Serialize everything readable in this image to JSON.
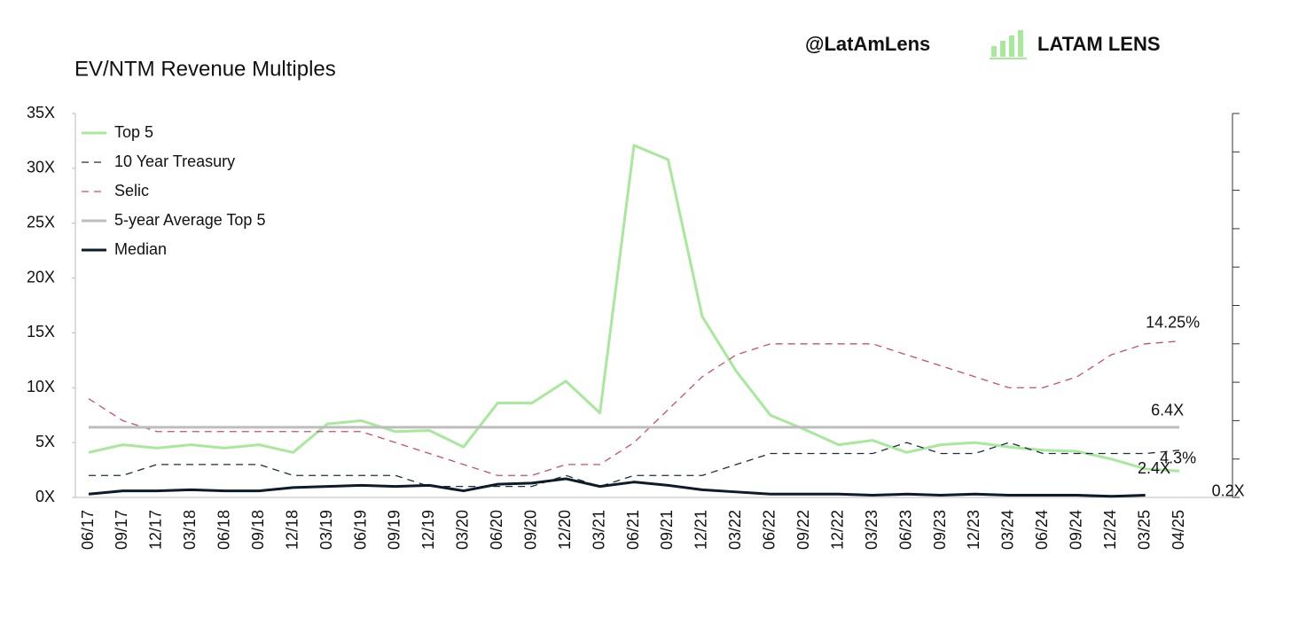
{
  "header": {
    "handle": "@LatAmLens",
    "brand": "LATAM LENS"
  },
  "chart_data": {
    "type": "line",
    "title": "EV/NTM Revenue Multiples",
    "categories": [
      "06/17",
      "09/17",
      "12/17",
      "03/18",
      "06/18",
      "09/18",
      "12/18",
      "03/19",
      "06/19",
      "09/19",
      "12/19",
      "03/20",
      "06/20",
      "09/20",
      "12/20",
      "03/21",
      "06/21",
      "09/21",
      "12/21",
      "03/22",
      "06/22",
      "09/22",
      "12/22",
      "03/23",
      "06/23",
      "09/23",
      "12/23",
      "03/24",
      "06/24",
      "09/24",
      "12/24",
      "03/25",
      "04/25"
    ],
    "ylim": [
      0,
      35
    ],
    "yticks": [
      {
        "value": 0,
        "label": "0X"
      },
      {
        "value": 5,
        "label": "5X"
      },
      {
        "value": 10,
        "label": "10X"
      },
      {
        "value": 15,
        "label": "15X"
      },
      {
        "value": 20,
        "label": "20X"
      },
      {
        "value": 25,
        "label": "25X"
      },
      {
        "value": 30,
        "label": "30X"
      },
      {
        "value": 35,
        "label": "35X"
      }
    ],
    "y2lim": [
      0,
      35
    ],
    "y2ticks": [
      0,
      3.5,
      7,
      10.5,
      14,
      17.5,
      21,
      24.5,
      28,
      31.5,
      35
    ],
    "legend": "top-left",
    "series": [
      {
        "name": "Top 5",
        "color": "#a8e89c",
        "dash": "solid",
        "values": [
          4.1,
          4.8,
          4.5,
          4.8,
          4.5,
          4.8,
          4.1,
          6.7,
          7.0,
          6.0,
          6.1,
          4.6,
          8.6,
          8.6,
          10.6,
          7.7,
          32.1,
          30.8,
          16.5,
          11.5,
          7.5,
          6.2,
          4.8,
          5.2,
          4.1,
          4.8,
          5.0,
          4.6,
          4.3,
          4.2,
          3.5,
          2.6,
          2.4
        ],
        "value_labels": [
          null,
          null,
          null,
          null,
          null,
          null,
          null,
          null,
          null,
          null,
          null,
          null,
          null,
          null,
          null,
          null,
          null,
          null,
          null,
          null,
          null,
          null,
          null,
          null,
          null,
          null,
          null,
          null,
          null,
          null,
          null,
          null,
          "2.4X"
        ]
      },
      {
        "name": "10 Year Treasury",
        "color": "#1f2d3d",
        "dash": "dashed",
        "axis": "y2",
        "values": [
          2,
          2,
          3,
          3,
          3,
          3,
          2,
          2,
          2,
          2,
          1,
          1,
          1,
          1,
          2,
          1,
          2,
          2,
          2,
          3,
          4,
          4,
          4,
          4,
          5,
          4,
          4,
          5,
          4,
          4,
          4,
          4,
          4.3
        ],
        "value_labels": [
          null,
          null,
          null,
          null,
          null,
          null,
          null,
          null,
          null,
          null,
          null,
          null,
          null,
          null,
          null,
          null,
          null,
          null,
          null,
          null,
          null,
          null,
          null,
          null,
          null,
          null,
          null,
          null,
          null,
          null,
          null,
          null,
          "4.3%"
        ]
      },
      {
        "name": "Selic",
        "color": "#c2506c",
        "dash": "dashed",
        "axis": "y2",
        "values": [
          9,
          7,
          6,
          6,
          6,
          6,
          6,
          6,
          6,
          5,
          4,
          3,
          2,
          2,
          3,
          3,
          5,
          8,
          11,
          13,
          14,
          14,
          14,
          14,
          13,
          12,
          11,
          10,
          10,
          11,
          13,
          14,
          14.25
        ],
        "value_labels": [
          null,
          null,
          null,
          null,
          null,
          null,
          null,
          null,
          null,
          null,
          null,
          null,
          null,
          null,
          null,
          null,
          null,
          null,
          null,
          null,
          null,
          null,
          null,
          null,
          null,
          null,
          null,
          null,
          null,
          null,
          null,
          null,
          "14.25%"
        ]
      },
      {
        "name": "5-year Average Top 5",
        "color": "#bdbdbd",
        "dash": "solid",
        "values": [
          6.4,
          6.4,
          6.4,
          6.4,
          6.4,
          6.4,
          6.4,
          6.4,
          6.4,
          6.4,
          6.4,
          6.4,
          6.4,
          6.4,
          6.4,
          6.4,
          6.4,
          6.4,
          6.4,
          6.4,
          6.4,
          6.4,
          6.4,
          6.4,
          6.4,
          6.4,
          6.4,
          6.4,
          6.4,
          6.4,
          6.4,
          6.4,
          6.4
        ],
        "value_labels": [
          null,
          null,
          null,
          null,
          null,
          null,
          null,
          null,
          null,
          null,
          null,
          null,
          null,
          null,
          null,
          null,
          null,
          null,
          null,
          null,
          null,
          null,
          null,
          null,
          null,
          null,
          null,
          null,
          null,
          null,
          null,
          null,
          "6.4X"
        ]
      },
      {
        "name": "Median",
        "color": "#0d1b2a",
        "dash": "solid",
        "values": [
          0.3,
          0.6,
          0.6,
          0.7,
          0.6,
          0.6,
          0.9,
          1.0,
          1.1,
          1.0,
          1.1,
          0.6,
          1.2,
          1.3,
          1.7,
          1.0,
          1.4,
          1.1,
          0.7,
          0.5,
          0.3,
          0.3,
          0.3,
          0.2,
          0.3,
          0.2,
          0.3,
          0.2,
          0.2,
          0.2,
          0.1,
          0.2,
          null
        ],
        "value_labels": [
          null,
          null,
          null,
          null,
          null,
          null,
          null,
          null,
          null,
          null,
          null,
          null,
          null,
          null,
          null,
          null,
          null,
          null,
          null,
          null,
          null,
          null,
          null,
          null,
          null,
          null,
          null,
          null,
          null,
          null,
          null,
          "0.2X",
          null
        ]
      }
    ]
  }
}
